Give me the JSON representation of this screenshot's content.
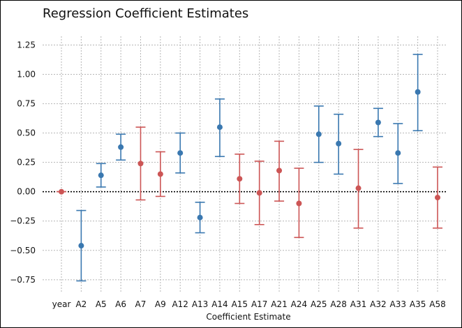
{
  "chart_data": {
    "type": "errorbar",
    "title": "Regression Coefficient Estimates",
    "xlabel": "Coefficient Estimate",
    "ylabel": "",
    "ylim": [
      -0.87,
      1.36
    ],
    "yticks": [
      -0.75,
      -0.5,
      -0.25,
      0.0,
      0.25,
      0.5,
      0.75,
      1.0,
      1.25
    ],
    "ytick_labels": [
      "−0.75",
      "−0.50",
      "−0.25",
      "0.00",
      "0.25",
      "0.50",
      "0.75",
      "1.00",
      "1.25"
    ],
    "grid": true,
    "reference_line": 0.0,
    "colors": {
      "significant": "#3a78b0",
      "not_significant": "#cc5555"
    },
    "categories": [
      "year",
      "A2",
      "A5",
      "A6",
      "A7",
      "A9",
      "A12",
      "A13",
      "A14",
      "A15",
      "A17",
      "A21",
      "A24",
      "A25",
      "A28",
      "A31",
      "A32",
      "A33",
      "A35",
      "A58"
    ],
    "estimates": [
      0.0,
      -0.46,
      0.14,
      0.38,
      0.24,
      0.15,
      0.33,
      -0.22,
      0.55,
      0.11,
      -0.01,
      0.18,
      -0.1,
      0.49,
      0.41,
      0.03,
      0.59,
      0.33,
      0.85,
      -0.05
    ],
    "lower": [
      0.0,
      -0.76,
      0.04,
      0.27,
      -0.07,
      -0.04,
      0.16,
      -0.35,
      0.3,
      -0.1,
      -0.28,
      -0.08,
      -0.39,
      0.25,
      0.15,
      -0.31,
      0.47,
      0.07,
      0.52,
      -0.31
    ],
    "upper": [
      0.0,
      -0.16,
      0.24,
      0.49,
      0.55,
      0.34,
      0.5,
      -0.09,
      0.79,
      0.32,
      0.26,
      0.43,
      0.2,
      0.73,
      0.66,
      0.36,
      0.71,
      0.58,
      1.17,
      0.21
    ],
    "significant": [
      false,
      true,
      true,
      true,
      false,
      false,
      true,
      true,
      true,
      false,
      false,
      false,
      false,
      true,
      true,
      false,
      true,
      true,
      true,
      false
    ]
  }
}
